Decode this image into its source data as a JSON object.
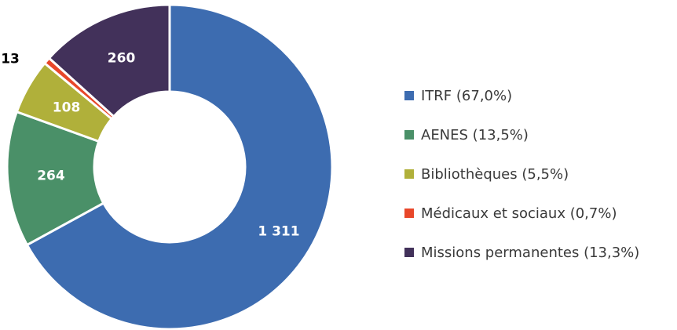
{
  "chart_data": {
    "type": "donut",
    "categories": [
      "ITRF (67,0%)",
      "AENES (13,5%)",
      "Bibliothèques (5,5%)",
      "Médicaux et sociaux (0,7%)",
      "Missions permanentes (13,3%)"
    ],
    "values": [
      1311,
      264,
      108,
      13,
      260
    ],
    "value_labels": [
      "1 311",
      "264",
      "108",
      "13",
      "260"
    ],
    "colors": [
      "#3d6cb0",
      "#4a9068",
      "#b0b03a",
      "#e8472a",
      "#42315a"
    ],
    "legend": "right"
  }
}
